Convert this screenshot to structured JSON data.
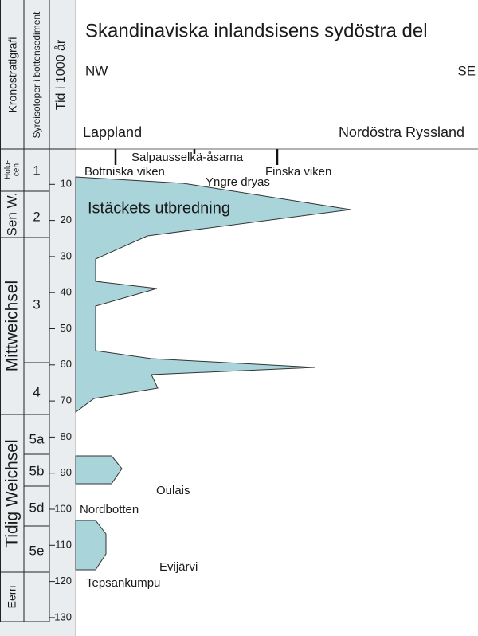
{
  "title": "Skandinaviska inlandsisens sydöstra del",
  "columns": [
    "Kronostratigrafi",
    "Syreisotoper i bottensediment",
    "Tid i 1000 år"
  ],
  "directions": [
    "NW",
    "SE"
  ],
  "regions": [
    "Lappland",
    "Nordöstra Ryssland"
  ],
  "stages": [
    [
      "Holo-",
      "cen"
    ],
    [
      "Sen W."
    ],
    [
      "Mittweichsel"
    ],
    [
      "Tidig Weichsel"
    ],
    [
      "Eem"
    ]
  ],
  "isotope_stages": [
    "1",
    "2",
    "3",
    "4",
    "5a",
    "5b",
    "5d",
    "5e"
  ],
  "time_ticks": [
    "10",
    "20",
    "30",
    "40",
    "50",
    "60",
    "70",
    "80",
    "90",
    "100",
    "110",
    "120",
    "130"
  ],
  "labels": {
    "moraines": "Salpausselkä-åsarna",
    "bothnia": "Bottniska viken",
    "finland": "Finska viken",
    "dryas": "Yngre dryas",
    "ice": "Istäckets utbredning",
    "oulais": "Oulais",
    "nordbotten": "Nordbotten",
    "evijarvi": "Evijärvi",
    "tepsankumpu": "Tepsankumpu"
  }
}
